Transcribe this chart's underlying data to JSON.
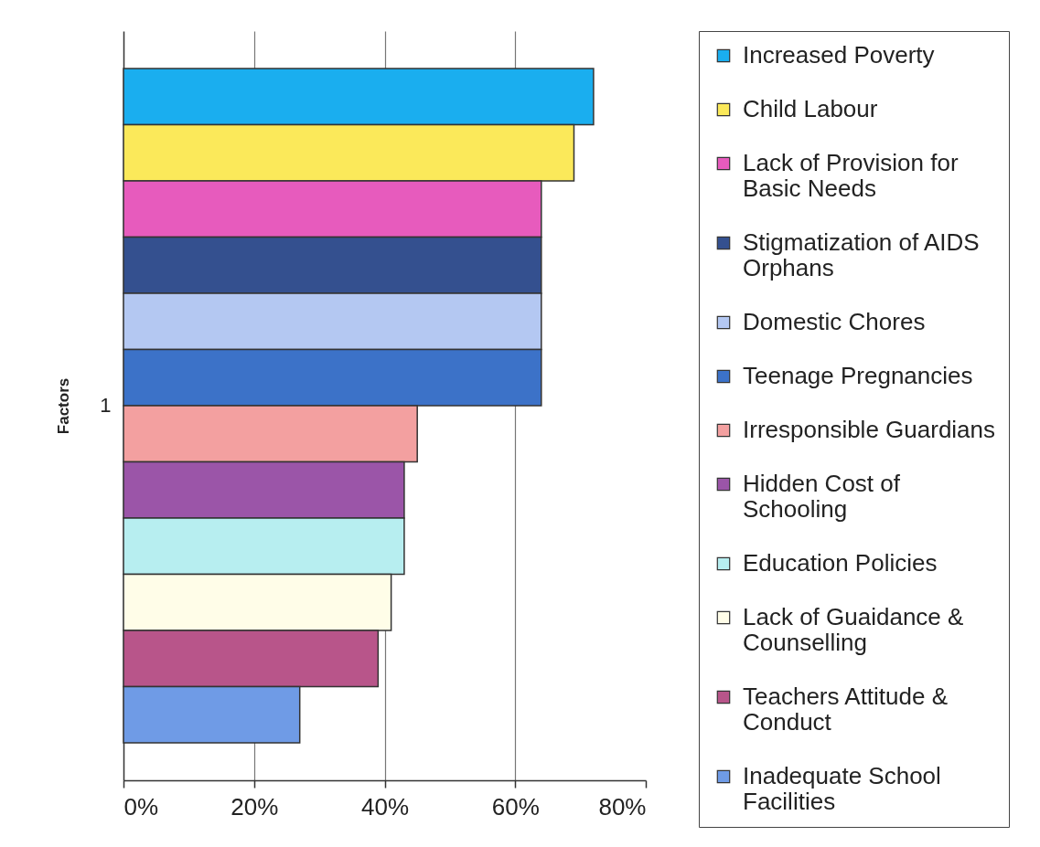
{
  "chart_data": {
    "type": "bar",
    "orientation": "horizontal",
    "ylabel": "Factors",
    "categories": [
      "1"
    ],
    "series": [
      {
        "name": "Increased Poverty",
        "color": "#1aaeef",
        "values": [
          72
        ]
      },
      {
        "name": "Child Labour",
        "color": "#fbe95a",
        "values": [
          69
        ]
      },
      {
        "name": "Lack of Provision for Basic Needs",
        "color": "#e75bbd",
        "values": [
          64
        ]
      },
      {
        "name": "Stigmatization of AIDS Orphans",
        "color": "#34508f",
        "values": [
          64
        ]
      },
      {
        "name": "Domestic Chores",
        "color": "#b4c8f2",
        "values": [
          64
        ]
      },
      {
        "name": "Teenage Pregnancies",
        "color": "#3c72c8",
        "values": [
          64
        ]
      },
      {
        "name": "Irresponsible Guardians",
        "color": "#f3a0a0",
        "values": [
          45
        ]
      },
      {
        "name": "Hidden Cost of Schooling",
        "color": "#9b55a8",
        "values": [
          43
        ]
      },
      {
        "name": "Education Policies",
        "color": "#b7eef0",
        "values": [
          43
        ]
      },
      {
        "name": "Lack of Guaidance & Counselling",
        "color": "#fffde8",
        "values": [
          41
        ]
      },
      {
        "name": "Teachers Attitude & Conduct",
        "color": "#b8558a",
        "values": [
          39
        ]
      },
      {
        "name": "Inadequate School Facilities",
        "color": "#6f9be6",
        "values": [
          27
        ]
      }
    ],
    "xlim": [
      0,
      80
    ],
    "xticks": [
      {
        "value": 0,
        "label": "0%"
      },
      {
        "value": 20,
        "label": "20%"
      },
      {
        "value": 40,
        "label": "40%"
      },
      {
        "value": 60,
        "label": "60%"
      },
      {
        "value": 80,
        "label": "80%"
      }
    ],
    "grid": "x",
    "legend": "right"
  }
}
